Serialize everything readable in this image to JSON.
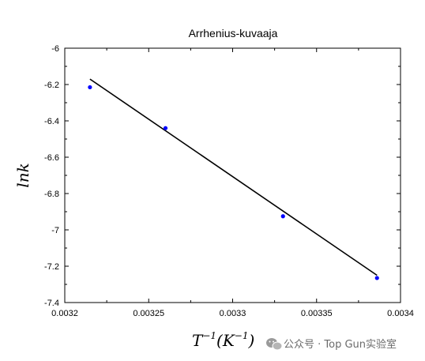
{
  "chart_data": {
    "type": "scatter",
    "title": "Arrhenius-kuvaaja",
    "xlabel_base": "T",
    "xlabel_sup": "−1",
    "xlabel_mid": "(K",
    "xlabel_sup2": "−1",
    "xlabel_end": ")",
    "ylabel": "lnk",
    "xlim": [
      0.0032,
      0.0034
    ],
    "ylim": [
      -7.4,
      -6.0
    ],
    "xticks": [
      {
        "value": 0.0032,
        "label": "0.0032"
      },
      {
        "value": 0.00325,
        "label": "0.00325"
      },
      {
        "value": 0.0033,
        "label": "0.0033"
      },
      {
        "value": 0.00335,
        "label": "0.00335"
      },
      {
        "value": 0.0034,
        "label": "0.0034"
      }
    ],
    "yticks": [
      {
        "value": -6.0,
        "label": "-6"
      },
      {
        "value": -6.2,
        "label": "-6.2"
      },
      {
        "value": -6.4,
        "label": "-6.4"
      },
      {
        "value": -6.6,
        "label": "-6.6"
      },
      {
        "value": -6.8,
        "label": "-6.8"
      },
      {
        "value": -7.0,
        "label": "-7"
      },
      {
        "value": -7.2,
        "label": "-7.2"
      },
      {
        "value": -7.4,
        "label": "-7.4"
      }
    ],
    "points": {
      "x": [
        0.003215,
        0.00326,
        0.00333,
        0.003386
      ],
      "y": [
        -6.215,
        -6.44,
        -6.925,
        -7.265
      ],
      "color": "#0000ff"
    },
    "fit_line": {
      "x": [
        0.003215,
        0.003386
      ],
      "y": [
        -6.17,
        -7.25
      ],
      "color": "#000000"
    },
    "grid": false
  },
  "watermark": {
    "icon": "wechat-icon",
    "text": "公众号 · Top Gun实验室"
  }
}
